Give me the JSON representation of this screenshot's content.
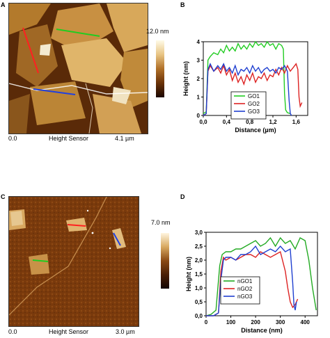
{
  "panels": {
    "A": {
      "letter": "A",
      "scale_max": "12.0 nm",
      "origin": "0.0",
      "sensor": "Height Sensor",
      "size": "4.1 µm"
    },
    "C": {
      "letter": "C",
      "scale_max": "7.0 nm",
      "origin": "0.0",
      "sensor": "Height Sensor",
      "size": "3.0 µm"
    }
  },
  "chart_data": [
    {
      "panel": "B",
      "type": "line",
      "xlabel": "Distance (µm)",
      "ylabel": "Height (nm)",
      "xlim": [
        0,
        1.8
      ],
      "ylim": [
        0,
        4
      ],
      "xticks": [
        "0,0",
        "0,4",
        "0,8",
        "1,2",
        "1,6"
      ],
      "xtick_values": [
        0,
        0.4,
        0.8,
        1.2,
        1.6
      ],
      "yticks": [
        "0",
        "1",
        "2",
        "3",
        "4"
      ],
      "ytick_values": [
        0,
        1,
        2,
        3,
        4
      ],
      "legend": "center",
      "series": [
        {
          "name": "GO1",
          "color": "#22cc22",
          "x": [
            0.0,
            0.05,
            0.08,
            0.12,
            0.18,
            0.25,
            0.3,
            0.35,
            0.4,
            0.45,
            0.5,
            0.55,
            0.6,
            0.65,
            0.7,
            0.75,
            0.8,
            0.85,
            0.9,
            0.95,
            1.0,
            1.05,
            1.1,
            1.15,
            1.2,
            1.25,
            1.3,
            1.35,
            1.38,
            1.4,
            1.42,
            1.45,
            1.5
          ],
          "y": [
            0.1,
            0.2,
            3.0,
            3.2,
            3.4,
            3.3,
            3.6,
            3.4,
            3.8,
            3.5,
            3.7,
            3.5,
            3.9,
            3.6,
            3.8,
            3.6,
            3.9,
            3.7,
            4.0,
            3.8,
            3.9,
            3.7,
            4.0,
            3.8,
            3.9,
            3.6,
            3.9,
            3.8,
            3.6,
            1.2,
            0.3,
            0.15,
            0.1
          ]
        },
        {
          "name": "GO2",
          "color": "#dd2222",
          "x": [
            0.0,
            0.05,
            0.08,
            0.12,
            0.18,
            0.25,
            0.3,
            0.35,
            0.4,
            0.45,
            0.5,
            0.55,
            0.6,
            0.65,
            0.7,
            0.75,
            0.8,
            0.85,
            0.9,
            0.95,
            1.0,
            1.05,
            1.1,
            1.15,
            1.2,
            1.25,
            1.3,
            1.35,
            1.4,
            1.45,
            1.5,
            1.55,
            1.6,
            1.63,
            1.65,
            1.67,
            1.7
          ],
          "y": [
            0.0,
            0.1,
            2.4,
            2.7,
            2.4,
            2.6,
            2.3,
            2.7,
            2.2,
            2.5,
            1.9,
            2.3,
            1.8,
            2.1,
            1.7,
            2.2,
            1.9,
            2.3,
            1.8,
            2.1,
            2.0,
            2.3,
            1.9,
            2.2,
            2.1,
            2.5,
            2.2,
            2.6,
            2.3,
            2.7,
            2.4,
            2.6,
            2.8,
            2.5,
            1.0,
            0.5,
            0.7
          ]
        },
        {
          "name": "GO3",
          "color": "#1f3fd0",
          "x": [
            0.0,
            0.05,
            0.08,
            0.12,
            0.18,
            0.25,
            0.3,
            0.35,
            0.4,
            0.45,
            0.5,
            0.55,
            0.6,
            0.65,
            0.7,
            0.75,
            0.8,
            0.85,
            0.9,
            0.95,
            1.0,
            1.05,
            1.1,
            1.15,
            1.2,
            1.25,
            1.3,
            1.35,
            1.4,
            1.45,
            1.48,
            1.5,
            1.52
          ],
          "y": [
            0.0,
            0.1,
            2.5,
            2.8,
            2.4,
            2.7,
            2.5,
            2.8,
            2.4,
            2.6,
            2.3,
            2.7,
            2.2,
            2.5,
            2.4,
            2.6,
            2.3,
            2.7,
            2.4,
            2.6,
            2.3,
            2.5,
            2.6,
            2.4,
            2.5,
            2.3,
            2.6,
            2.5,
            2.7,
            2.4,
            0.8,
            0.1,
            0.0
          ]
        }
      ]
    },
    {
      "panel": "D",
      "type": "line",
      "xlabel": "Distance (nm)",
      "ylabel": "Height (nm)",
      "xlim": [
        0,
        450
      ],
      "ylim": [
        0,
        3.0
      ],
      "xticks": [
        "0",
        "100",
        "200",
        "300",
        "400"
      ],
      "xtick_values": [
        0,
        100,
        200,
        300,
        400
      ],
      "yticks": [
        "0,0",
        "0,5",
        "1,0",
        "1,5",
        "2,0",
        "2,5",
        "3,0"
      ],
      "ytick_values": [
        0,
        0.5,
        1.0,
        1.5,
        2.0,
        2.5,
        3.0
      ],
      "legend": "bottom-left",
      "series": [
        {
          "name": "nGO1",
          "color": "#22aa22",
          "x": [
            0,
            20,
            40,
            55,
            65,
            80,
            100,
            120,
            140,
            160,
            180,
            200,
            220,
            240,
            260,
            280,
            300,
            320,
            340,
            360,
            380,
            400,
            415,
            430,
            445
          ],
          "y": [
            0.0,
            0.05,
            0.2,
            1.8,
            2.2,
            2.3,
            2.3,
            2.4,
            2.4,
            2.5,
            2.6,
            2.7,
            2.5,
            2.6,
            2.8,
            2.5,
            2.8,
            2.6,
            2.7,
            2.4,
            2.8,
            2.7,
            2.0,
            1.0,
            0.2
          ]
        },
        {
          "name": "nGO2",
          "color": "#dd2222",
          "x": [
            0,
            30,
            50,
            60,
            70,
            80,
            100,
            120,
            140,
            160,
            180,
            200,
            220,
            240,
            260,
            280,
            300,
            320,
            330,
            340,
            350,
            360,
            370
          ],
          "y": [
            0.0,
            0.0,
            0.1,
            1.6,
            2.1,
            2.0,
            2.1,
            2.0,
            2.1,
            2.2,
            2.2,
            2.1,
            2.3,
            2.2,
            2.1,
            2.2,
            2.3,
            1.6,
            1.0,
            0.5,
            0.3,
            0.4,
            0.6
          ]
        },
        {
          "name": "nGO3",
          "color": "#1f3fd0",
          "x": [
            0,
            30,
            50,
            60,
            70,
            80,
            100,
            120,
            140,
            160,
            180,
            200,
            220,
            240,
            260,
            280,
            300,
            320,
            340,
            350,
            355,
            360,
            365
          ],
          "y": [
            0.0,
            0.0,
            0.1,
            1.3,
            2.0,
            2.1,
            2.1,
            2.0,
            2.2,
            2.2,
            2.3,
            2.5,
            2.2,
            2.3,
            2.4,
            2.3,
            2.5,
            2.3,
            2.4,
            1.2,
            0.4,
            0.2,
            0.5
          ]
        }
      ]
    }
  ]
}
